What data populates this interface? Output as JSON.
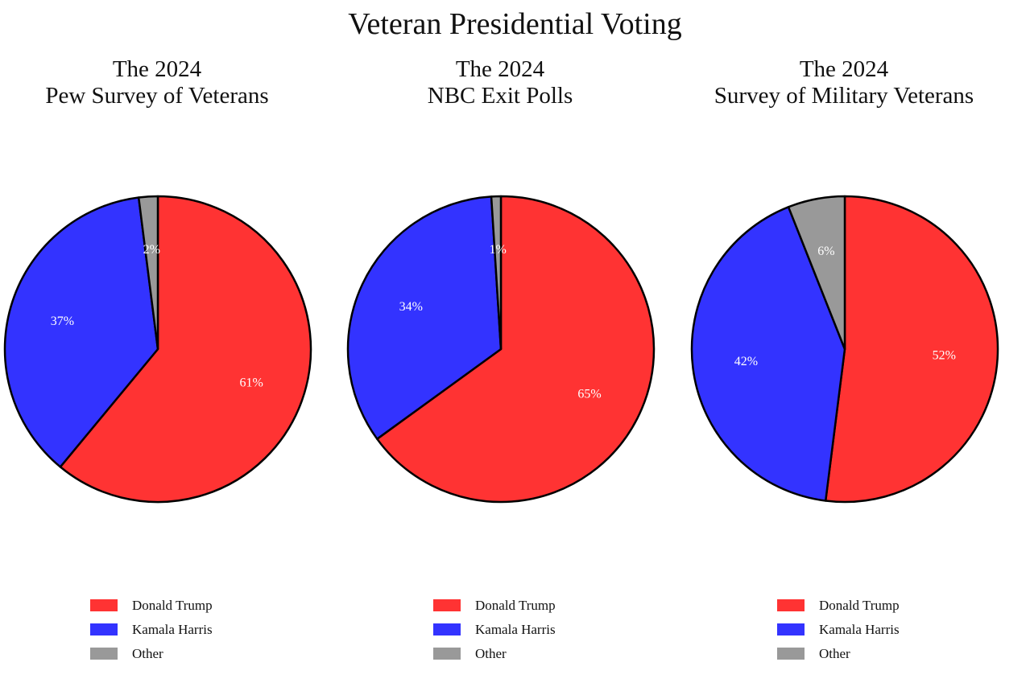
{
  "chart_data": {
    "title": "Veteran Presidential Voting",
    "type": "pie",
    "colors": {
      "Donald Trump": "#ff3333",
      "Kamala Harris": "#3333ff",
      "Other": "#999999"
    },
    "charts": [
      {
        "title_line1": "The 2024",
        "title_line2": "Pew Survey of Veterans",
        "labels": [
          "Donald Trump",
          "Kamala Harris",
          "Other"
        ],
        "values": [
          61,
          37,
          2
        ],
        "value_labels": [
          "61%",
          "37%",
          "2%"
        ]
      },
      {
        "title_line1": "The 2024",
        "title_line2": "NBC Exit Polls",
        "labels": [
          "Donald Trump",
          "Kamala Harris",
          "Other"
        ],
        "values": [
          65,
          34,
          1
        ],
        "value_labels": [
          "65%",
          "34%",
          "1%"
        ]
      },
      {
        "title_line1": "The 2024",
        "title_line2": "Survey of Military Veterans",
        "labels": [
          "Donald Trump",
          "Kamala Harris",
          "Other"
        ],
        "values": [
          52,
          42,
          6
        ],
        "value_labels": [
          "52%",
          "42%",
          "6%"
        ]
      }
    ]
  }
}
